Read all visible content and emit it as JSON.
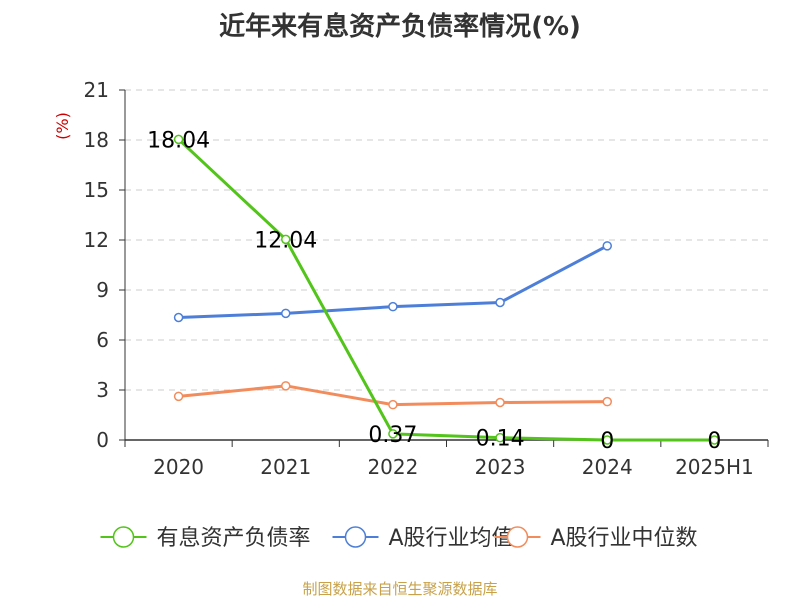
{
  "chart_data": {
    "type": "line",
    "title": "近年来有息资产负债率情况(%)",
    "ylabel": "(%)",
    "xlabel": "",
    "categories": [
      "2020",
      "2021",
      "2022",
      "2023",
      "2024",
      "2025H1"
    ],
    "ylim": [
      0,
      21
    ],
    "yticks": [
      0,
      3,
      6,
      9,
      12,
      15,
      18,
      21
    ],
    "grid": true,
    "legend_position": "bottom",
    "series": [
      {
        "name": "有息资产负债率",
        "color": "#52c41a",
        "values": [
          18.04,
          12.04,
          0.37,
          0.14,
          0,
          0
        ],
        "labels": [
          "18.04",
          "12.04",
          "0.37",
          "0.14",
          "0",
          "0"
        ]
      },
      {
        "name": "A股行业均值",
        "color": "#4e7fd8",
        "values": [
          7.35,
          7.6,
          8.0,
          8.25,
          11.65,
          null
        ]
      },
      {
        "name": "A股行业中位数",
        "color": "#f28c5c",
        "values": [
          2.62,
          3.25,
          2.12,
          2.25,
          2.3,
          null
        ]
      }
    ]
  },
  "footer": {
    "source": "制图数据来自恒生聚源数据库"
  }
}
